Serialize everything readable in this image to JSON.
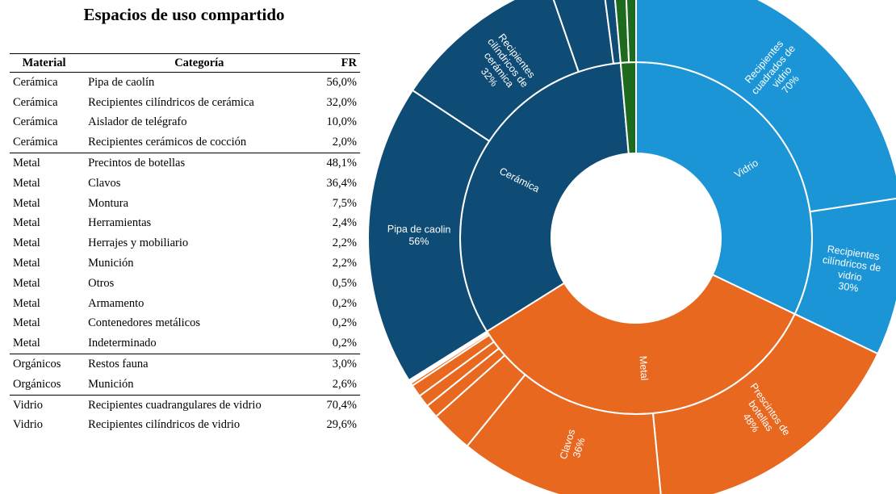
{
  "title": "Espacios de uso compartido",
  "table": {
    "headers": [
      "Material",
      "Categoría",
      "FR"
    ],
    "groups": [
      {
        "rows": [
          [
            "Cerámica",
            "Pipa de caolín",
            "56,0%"
          ],
          [
            "Cerámica",
            "Recipientes cilíndricos de cerámica",
            "32,0%"
          ],
          [
            "Cerámica",
            "Aislador de telégrafo",
            "10,0%"
          ],
          [
            "Cerámica",
            "Recipientes cerámicos de cocción",
            "2,0%"
          ]
        ]
      },
      {
        "rows": [
          [
            "Metal",
            "Precintos de botellas",
            "48,1%"
          ],
          [
            "Metal",
            "Clavos",
            "36,4%"
          ],
          [
            "Metal",
            "Montura",
            "7,5%"
          ],
          [
            "Metal",
            "Herramientas",
            "2,4%"
          ],
          [
            "Metal",
            "Herrajes y mobiliario",
            "2,2%"
          ],
          [
            "Metal",
            "Munición",
            "2,2%"
          ],
          [
            "Metal",
            "Otros",
            "0,5%"
          ],
          [
            "Metal",
            "Armamento",
            "0,2%"
          ],
          [
            "Metal",
            "Contenedores metálicos",
            "0,2%"
          ],
          [
            "Metal",
            "Indeterminado",
            "0,2%"
          ]
        ]
      },
      {
        "rows": [
          [
            "Orgánicos",
            "Restos fauna",
            "3,0%"
          ],
          [
            "Orgánicos",
            "Munición",
            "2,6%"
          ]
        ]
      },
      {
        "rows": [
          [
            "Vidrio",
            "Recipientes cuadrangulares de vidrio",
            "70,4%"
          ],
          [
            "Vidrio",
            "Recipientes cilíndricos de vidrio",
            "29,6%"
          ]
        ]
      }
    ]
  },
  "chart_data": {
    "type": "sunburst",
    "series": [
      {
        "name": "Vidrio",
        "color": "#1b95d6",
        "value": 32.1,
        "children": [
          {
            "name": "Recipientes cuadrados de vidrio",
            "value": 70.4,
            "value_label": "70%"
          },
          {
            "name": "Recipientes cilíndricos de vidrio",
            "value": 29.6,
            "value_label": "30%"
          }
        ]
      },
      {
        "name": "Metal",
        "color": "#e8681f",
        "value": 34,
        "children": [
          {
            "name": "Prescintos de botellas",
            "value": 48.1,
            "value_label": "48%"
          },
          {
            "name": "Clavos",
            "value": 36.4,
            "value_label": "36%"
          },
          {
            "value": 7.5
          },
          {
            "value": 2.4
          },
          {
            "value": 2.2
          },
          {
            "value": 2.2
          },
          {
            "value": 0.5
          },
          {
            "value": 0.2
          },
          {
            "value": 0.2
          },
          {
            "value": 0.2
          }
        ]
      },
      {
        "name": "Cerámica",
        "color": "#0f4c75",
        "value": 32.5,
        "children": [
          {
            "name": "Pipa de caolin",
            "value": 56,
            "value_label": "56%"
          },
          {
            "name": "Recipientes cilíndricos de cerámica",
            "value": 32,
            "value_label": "32%"
          },
          {
            "value": 10
          },
          {
            "value": 2
          }
        ]
      },
      {
        "color": "#1e6b1e",
        "value": 1.4,
        "children": [
          {
            "value": 3.0
          },
          {
            "value": 2.6
          }
        ]
      }
    ]
  }
}
